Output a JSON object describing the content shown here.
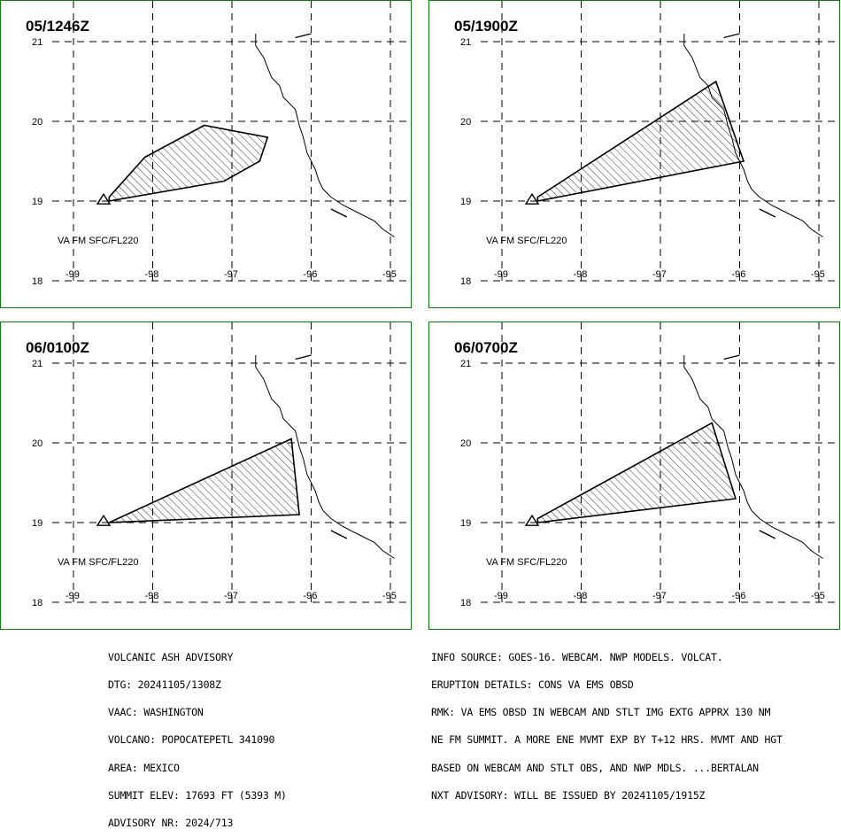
{
  "colors": {
    "frame": "#0a7a0a",
    "grid": "#000000",
    "ash": "#000000",
    "coast": "#000000"
  },
  "map": {
    "lon_ticks": [
      "-99",
      "-98",
      "-97",
      "-96",
      "-95"
    ],
    "lat_ticks": [
      "21",
      "20",
      "19",
      "18"
    ],
    "lon_range": [
      -99.0,
      -95.0
    ],
    "lat_range": [
      18.0,
      21.0
    ],
    "volcano_icon": "volcano-triangle-icon",
    "coastline": [
      [
        -96.7,
        21.1
      ],
      [
        -96.7,
        20.95
      ],
      [
        -96.6,
        20.8
      ],
      [
        -96.5,
        20.55
      ],
      [
        -96.4,
        20.45
      ],
      [
        -96.35,
        20.3
      ],
      [
        -96.2,
        20.15
      ],
      [
        -96.15,
        19.95
      ],
      [
        -96.1,
        19.8
      ],
      [
        -96.05,
        19.6
      ],
      [
        -95.95,
        19.4
      ],
      [
        -95.9,
        19.25
      ],
      [
        -95.85,
        19.15
      ],
      [
        -95.75,
        19.05
      ],
      [
        -95.6,
        18.95
      ],
      [
        -95.4,
        18.85
      ],
      [
        -95.2,
        18.75
      ],
      [
        -95.1,
        18.65
      ],
      [
        -94.95,
        18.55
      ]
    ],
    "coastline_islands": [
      [
        [
          -96.2,
          21.05
        ],
        [
          -96.0,
          21.1
        ]
      ],
      [
        [
          -95.75,
          18.9
        ],
        [
          -95.55,
          18.8
        ]
      ]
    ]
  },
  "panels": [
    {
      "title": "05/1246Z",
      "level": "VA FM SFC/FL220",
      "polygon": [
        [
          -98.55,
          19.05
        ],
        [
          -98.1,
          19.55
        ],
        [
          -97.35,
          19.95
        ],
        [
          -96.55,
          19.8
        ],
        [
          -96.65,
          19.5
        ],
        [
          -97.1,
          19.25
        ],
        [
          -98.55,
          19.0
        ]
      ]
    },
    {
      "title": "05/1900Z",
      "level": "VA FM SFC/FL220",
      "polygon": [
        [
          -98.55,
          19.05
        ],
        [
          -96.3,
          20.5
        ],
        [
          -95.95,
          19.5
        ],
        [
          -98.55,
          19.0
        ]
      ]
    },
    {
      "title": "06/0100Z",
      "level": "VA FM SFC/FL220",
      "polygon": [
        [
          -98.55,
          19.0
        ],
        [
          -96.25,
          20.05
        ],
        [
          -96.15,
          19.1
        ],
        [
          -98.55,
          19.0
        ]
      ]
    },
    {
      "title": "06/0700Z",
      "level": "VA FM SFC/FL220",
      "polygon": [
        [
          -98.55,
          19.05
        ],
        [
          -96.35,
          20.25
        ],
        [
          -96.05,
          19.3
        ],
        [
          -98.55,
          19.0
        ]
      ]
    }
  ],
  "volcano": {
    "name": "POPOCATEPETL",
    "lon": -98.62,
    "lat": 19.02
  },
  "advisory_left": [
    "VOLCANIC ASH ADVISORY",
    "DTG: 20241105/1308Z",
    "VAAC: WASHINGTON",
    "VOLCANO: POPOCATEPETL 341090",
    "AREA: MEXICO",
    "SUMMIT ELEV: 17693 FT (5393 M)",
    "ADVISORY NR: 2024/713"
  ],
  "advisory_right": [
    "INFO SOURCE: GOES-16. WEBCAM. NWP MODELS. VOLCAT.",
    "ERUPTION DETAILS: CONS VA EMS OBSD",
    "RMK: VA EMS OBSD IN WEBCAM AND STLT IMG EXTG APPRX 130 NM",
    "NE FM SUMMIT. A MORE ENE MVMT EXP BY T+12 HRS. MVMT AND HGT",
    "BASED ON WEBCAM AND STLT OBS, AND NWP MDLS. ...BERTALAN",
    "NXT ADVISORY: WILL BE ISSUED BY 20241105/1915Z"
  ]
}
